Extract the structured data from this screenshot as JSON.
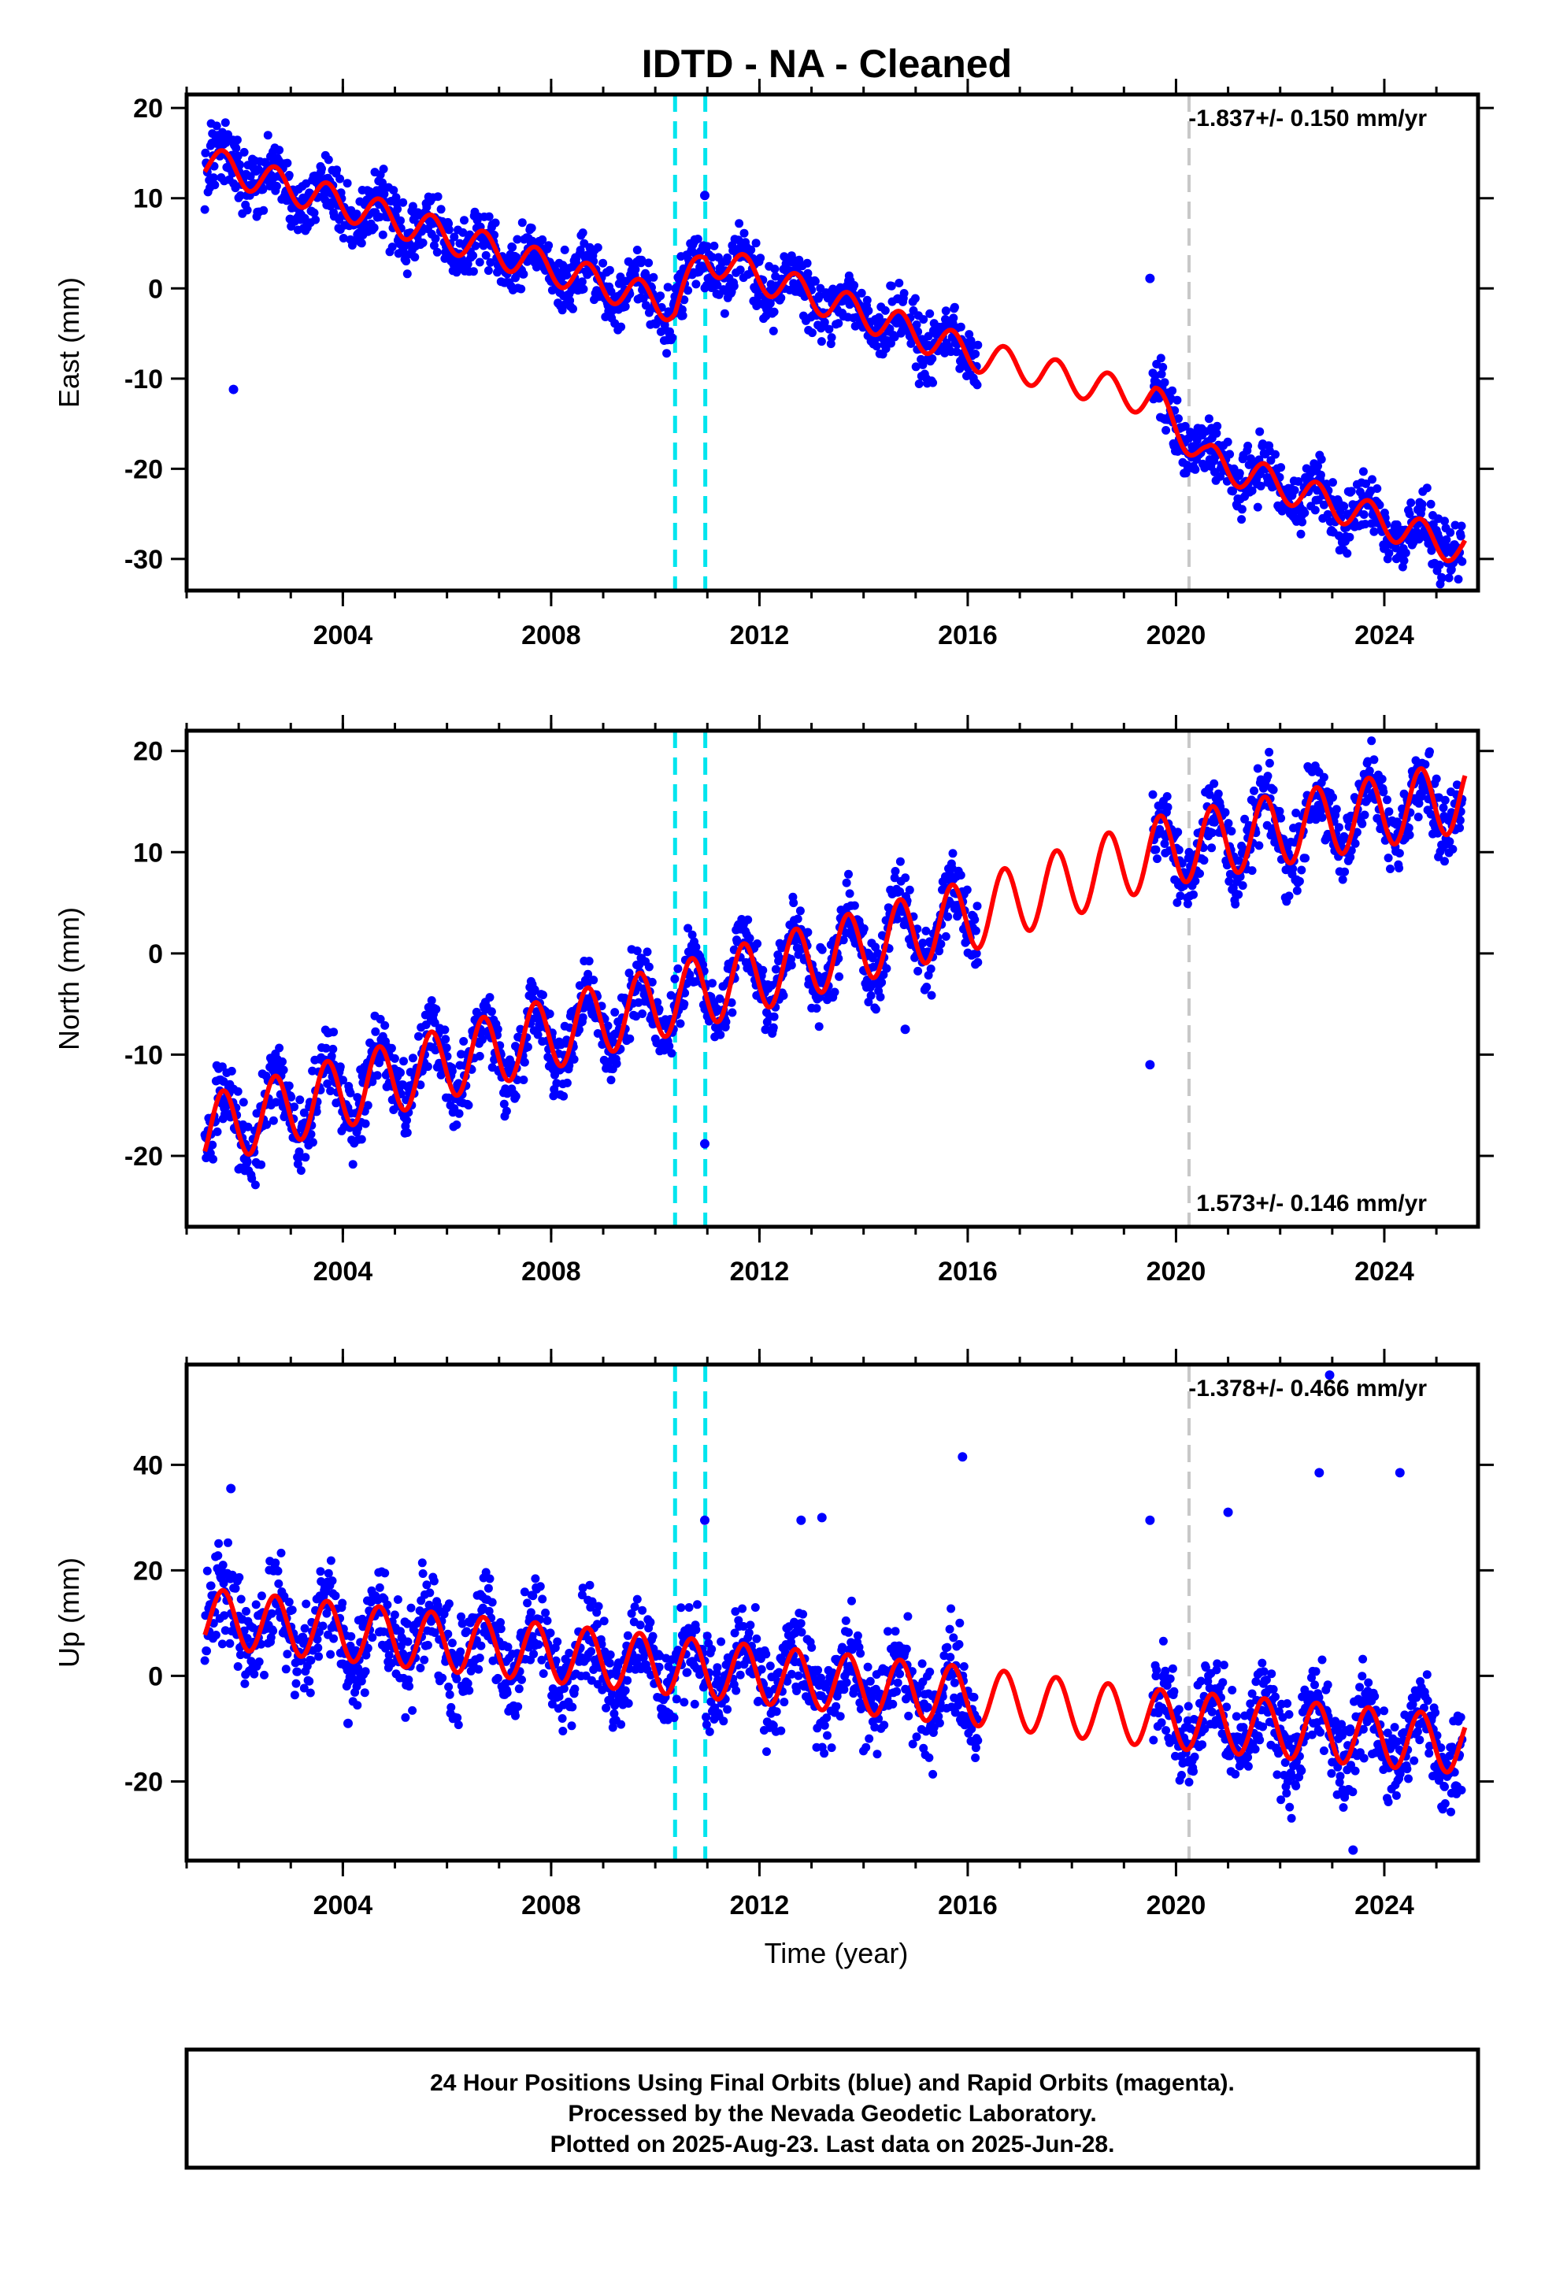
{
  "title": "IDTD  - NA - Cleaned",
  "colors": {
    "data_points": "#0000ff",
    "model_fit": "#ff0000",
    "antenna_change": "#00e5ee",
    "event_line": "#c8c8c8"
  },
  "chart_data": [
    {
      "type": "scatter",
      "ylabel": "East (mm)",
      "xlabel": "",
      "xlim": [
        2001.0,
        2025.8
      ],
      "ylim": [
        -33.5,
        21.5
      ],
      "xticks": [
        "2004",
        "2008",
        "2012",
        "2016",
        "2020",
        "2024"
      ],
      "yticks": [
        "20",
        "10",
        "0",
        "-10",
        "-20",
        "-30"
      ],
      "rate_label": "-1.837+/- 0.150 mm/yr",
      "rate_position": "top-right",
      "vlines_cyan": [
        2010.38,
        2010.96
      ],
      "vline_gray": 2020.25,
      "model_anchor": {
        "x": [
          2001.4,
          2010.38,
          2010.96,
          2016.2,
          2019.6,
          2020.6,
          2025.5
        ],
        "y": [
          14.0,
          -2.0,
          3.5,
          -7.5,
          -12.5,
          -19.0,
          -29.0
        ]
      },
      "seasonal_amplitude": 1.8,
      "scatter_half_width": 2.6,
      "data_gap": [
        2016.2,
        2019.55
      ],
      "outliers": [
        {
          "x": 2001.9,
          "y": -11.2
        },
        {
          "x": 2010.95,
          "y": 10.3
        },
        {
          "x": 2019.5,
          "y": 1.1
        }
      ]
    },
    {
      "type": "scatter",
      "ylabel": "North (mm)",
      "xlabel": "",
      "xlim": [
        2001.0,
        2025.8
      ],
      "ylim": [
        -27.0,
        22.0
      ],
      "xticks": [
        "2004",
        "2008",
        "2012",
        "2016",
        "2020",
        "2024"
      ],
      "yticks": [
        "20",
        "10",
        "0",
        "-10",
        "-20"
      ],
      "rate_label": "1.573+/- 0.146 mm/yr",
      "rate_position": "bottom-right",
      "vlines_cyan": [
        2010.38,
        2010.96
      ],
      "vline_gray": 2020.25,
      "model_anchor": {
        "x": [
          2001.4,
          2016.2,
          2019.6,
          2025.5
        ],
        "y": [
          -17.5,
          4.0,
          10.0,
          15.5
        ]
      },
      "seasonal_amplitude": 3.5,
      "scatter_half_width": 2.8,
      "data_gap": [
        2016.2,
        2019.55
      ],
      "outliers": [
        {
          "x": 2010.95,
          "y": -18.8
        },
        {
          "x": 2019.5,
          "y": -11.0
        },
        {
          "x": 2014.8,
          "y": -7.5
        }
      ]
    },
    {
      "type": "scatter",
      "ylabel": "Up (mm)",
      "xlabel": "Time (year)",
      "xlim": [
        2001.0,
        2025.8
      ],
      "ylim": [
        -35.0,
        59.0
      ],
      "xticks": [
        "2004",
        "2008",
        "2012",
        "2016",
        "2020",
        "2024"
      ],
      "yticks": [
        "40",
        "20",
        "0",
        "-20"
      ],
      "rate_label": "-1.378+/- 0.466 mm/yr",
      "rate_position": "top-right",
      "vlines_cyan": [
        2010.38,
        2010.96
      ],
      "vline_gray": 2020.25,
      "model_anchor": {
        "x": [
          2001.4,
          2016.2,
          2019.6,
          2025.5
        ],
        "y": [
          11.0,
          -4.0,
          -8.0,
          -13.0
        ]
      },
      "seasonal_amplitude": 5.5,
      "scatter_half_width": 7.0,
      "data_gap": [
        2016.2,
        2019.55
      ],
      "outliers": [
        {
          "x": 2001.85,
          "y": 35.5
        },
        {
          "x": 2015.9,
          "y": 41.5
        },
        {
          "x": 2019.5,
          "y": 29.5
        },
        {
          "x": 2021.0,
          "y": 31.0
        },
        {
          "x": 2022.75,
          "y": 38.5
        },
        {
          "x": 2024.3,
          "y": 38.5
        },
        {
          "x": 2022.95,
          "y": 57.0
        },
        {
          "x": 2013.2,
          "y": 30.0
        },
        {
          "x": 2012.8,
          "y": 29.5
        },
        {
          "x": 2004.1,
          "y": -9.0
        },
        {
          "x": 2023.4,
          "y": -33.0
        },
        {
          "x": 2010.95,
          "y": 29.5
        }
      ]
    }
  ],
  "footer": {
    "line1": "24 Hour Positions Using Final Orbits (blue) and Rapid Orbits (magenta).",
    "line2": "Processed by the Nevada Geodetic Laboratory.",
    "line3": "Plotted on 2025-Aug-23. Last data on 2025-Jun-28."
  }
}
